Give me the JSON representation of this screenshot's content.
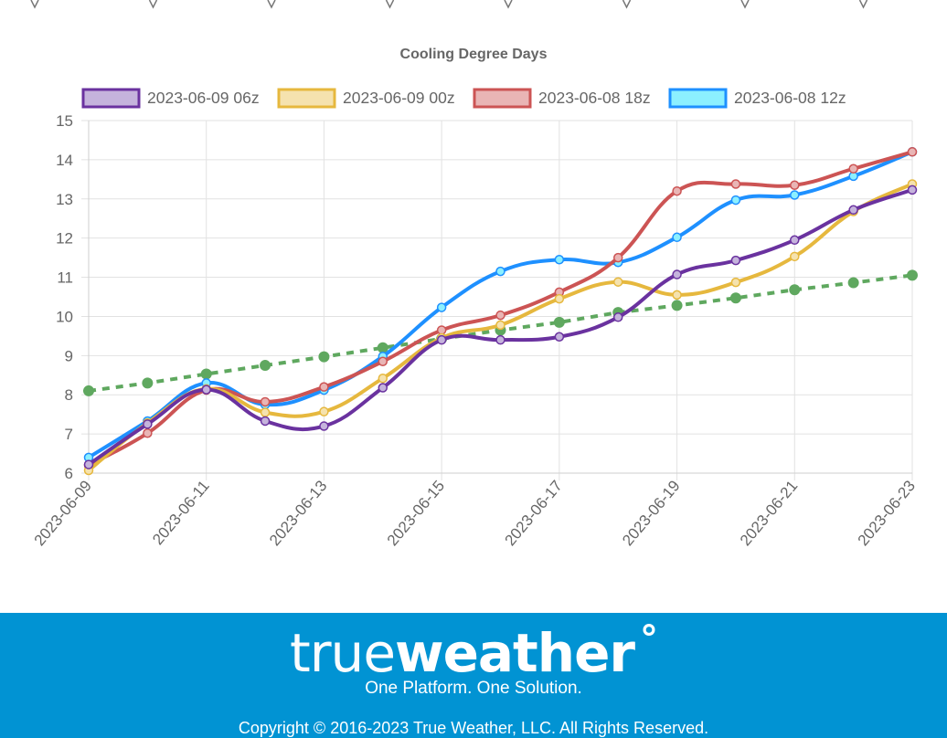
{
  "chart_data": {
    "type": "line",
    "title": "Cooling Degree Days",
    "xlabel": "",
    "ylabel": "",
    "ylim": [
      6,
      15
    ],
    "yticks": [
      "6",
      "7",
      "8",
      "9",
      "10",
      "11",
      "12",
      "13",
      "14",
      "15"
    ],
    "x": [
      "2023-06-09",
      "2023-06-10",
      "2023-06-11",
      "2023-06-12",
      "2023-06-13",
      "2023-06-14",
      "2023-06-15",
      "2023-06-16",
      "2023-06-17",
      "2023-06-18",
      "2023-06-19",
      "2023-06-20",
      "2023-06-21",
      "2023-06-22",
      "2023-06-23"
    ],
    "xtick_labels": [
      "2023-06-09",
      "2023-06-11",
      "2023-06-13",
      "2023-06-15",
      "2023-06-17",
      "2023-06-19",
      "2023-06-21",
      "2023-06-23"
    ],
    "grid": true,
    "legend_position": "top",
    "series": [
      {
        "name": "2023-06-09 06z",
        "color": "#6a329f",
        "fill": "#c5b3dc",
        "values": [
          6.22,
          7.25,
          8.13,
          7.33,
          7.2,
          8.18,
          9.4,
          9.4,
          9.48,
          9.98,
          11.07,
          11.43,
          11.95,
          12.72,
          13.23
        ]
      },
      {
        "name": "2023-06-09 00z",
        "color": "#e6b83e",
        "fill": "#f5e2ae",
        "values": [
          6.07,
          7.28,
          8.15,
          7.55,
          7.57,
          8.42,
          9.45,
          9.78,
          10.45,
          10.88,
          10.55,
          10.87,
          11.53,
          12.68,
          13.38
        ]
      },
      {
        "name": "2023-06-08 18z",
        "color": "#cc5454",
        "fill": "#e9b5b5",
        "values": [
          6.2,
          7.02,
          8.12,
          7.82,
          8.2,
          8.85,
          9.65,
          10.03,
          10.62,
          11.5,
          13.2,
          13.38,
          13.35,
          13.77,
          14.2
        ]
      },
      {
        "name": "2023-06-08 12z",
        "color": "#1e90ff",
        "fill": "#8cf0ff",
        "values": [
          6.4,
          7.33,
          8.3,
          7.75,
          8.12,
          8.98,
          10.23,
          11.15,
          11.45,
          11.38,
          12.02,
          12.97,
          13.1,
          13.58,
          14.2
        ]
      },
      {
        "name": "",
        "color": "#5fa85f",
        "dashed": true,
        "legend": false,
        "values": [
          8.1,
          8.3,
          8.53,
          8.75,
          8.97,
          9.2,
          9.43,
          9.65,
          9.85,
          10.1,
          10.28,
          10.47,
          10.68,
          10.86,
          11.05
        ]
      }
    ]
  },
  "footer": {
    "logo_light": "true",
    "logo_bold": "weather",
    "logo_mark": "°",
    "tagline": "One Platform. One Solution.",
    "copyright": "Copyright © 2016-2023 True Weather, LLC. All Rights Reserved."
  }
}
